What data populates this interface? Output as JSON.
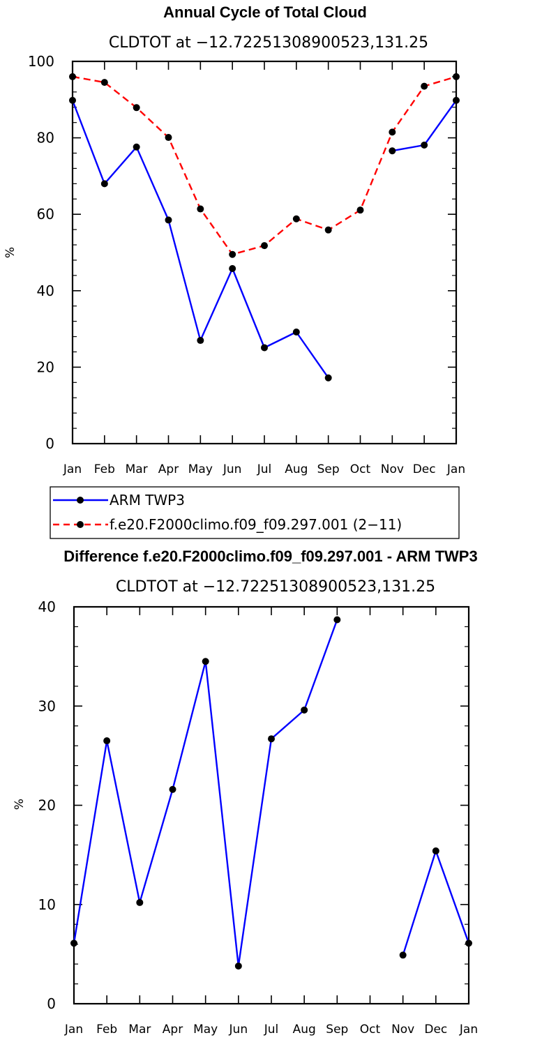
{
  "chart_data": [
    {
      "type": "line",
      "title": "Annual Cycle of Total Cloud",
      "subtitle": "CLDTOT at −12.72251308900523,131.25",
      "ylabel": "%",
      "ylim": [
        0,
        100
      ],
      "yticks": [
        "0",
        "20",
        "40",
        "60",
        "80",
        "100"
      ],
      "categories": [
        "Jan",
        "Feb",
        "Mar",
        "Apr",
        "May",
        "Jun",
        "Jul",
        "Aug",
        "Sep",
        "Oct",
        "Nov",
        "Dec",
        "Jan"
      ],
      "series": [
        {
          "name": "ARM TWP3",
          "color": "#0000ff",
          "dash": "solid",
          "values": [
            89.8,
            68.0,
            77.6,
            58.5,
            27.0,
            45.8,
            25.1,
            29.2,
            17.2,
            null,
            76.6,
            78.1,
            89.8
          ]
        },
        {
          "name": "f.e20.F2000climo.f09_f09.297.001 (2−11)",
          "color": "#ff0000",
          "dash": "dashed",
          "values": [
            96.0,
            94.5,
            87.9,
            80.1,
            61.4,
            49.5,
            51.8,
            58.8,
            55.9,
            61.1,
            81.5,
            93.5,
            96.0
          ]
        }
      ],
      "legend": "bottom"
    },
    {
      "type": "line",
      "title": "Difference f.e20.F2000climo.f09_f09.297.001 - ARM TWP3",
      "subtitle": "CLDTOT at −12.72251308900523,131.25",
      "ylabel": "%",
      "ylim": [
        0,
        40
      ],
      "yticks": [
        "0",
        "10",
        "20",
        "30",
        "40"
      ],
      "categories": [
        "Jan",
        "Feb",
        "Mar",
        "Apr",
        "May",
        "Jun",
        "Jul",
        "Aug",
        "Sep",
        "Oct",
        "Nov",
        "Dec",
        "Jan"
      ],
      "series": [
        {
          "color": "#0000ff",
          "dash": "solid",
          "values": [
            6.1,
            26.5,
            10.2,
            21.6,
            34.5,
            3.8,
            26.7,
            29.6,
            38.7,
            null,
            4.9,
            15.4,
            6.1
          ]
        }
      ]
    }
  ]
}
